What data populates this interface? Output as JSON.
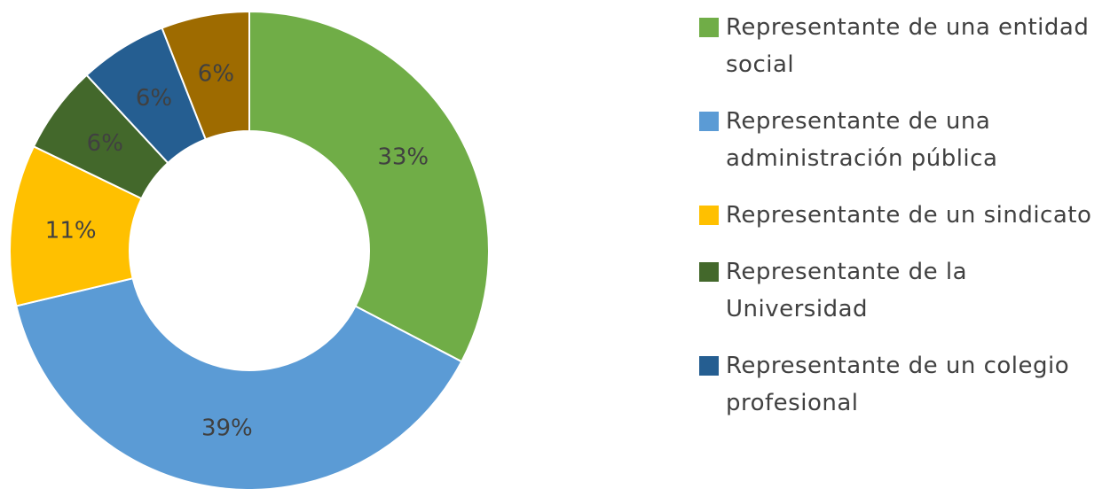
{
  "chart_data": {
    "type": "donut",
    "categories": [
      "Representante de una entidad social",
      "Representante de una administración pública",
      "Representante de un sindicato",
      "Representante de la Universidad",
      "Representante de un colegio profesional",
      null
    ],
    "values": [
      33,
      39,
      11,
      6,
      6,
      6
    ],
    "value_labels": [
      "33%",
      "39%",
      "11%",
      "6%",
      "6%",
      "6%"
    ],
    "colors": [
      "#70ad47",
      "#5b9bd5",
      "#ffc000",
      "#43682b",
      "#255e91",
      "#9e6b00"
    ],
    "legend": "right"
  }
}
